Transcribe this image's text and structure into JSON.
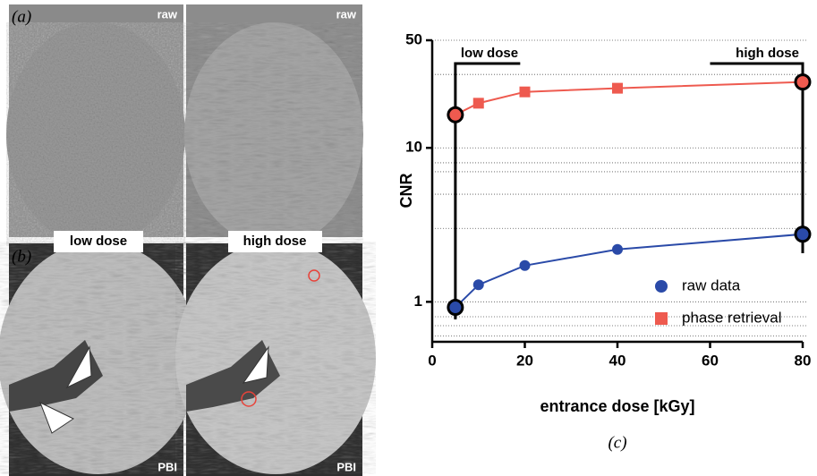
{
  "panels": {
    "labels": [
      "(a)",
      "(b)"
    ],
    "image_labels": [
      "raw",
      "raw",
      "PBI",
      "PBI"
    ],
    "headers": [
      "low dose",
      "high dose"
    ]
  },
  "chart_data": {
    "type": "line",
    "panel_label": "(c)",
    "x_label": "entrance dose [kGy]",
    "y_label": "CNR",
    "x": [
      5,
      10,
      20,
      40,
      80
    ],
    "series": [
      {
        "name": "raw data",
        "color": "#2a4aa8",
        "marker": "circle",
        "values": [
          0.92,
          1.29,
          1.72,
          2.19,
          2.75
        ]
      },
      {
        "name": "phase retrieval",
        "color": "#ee5a4f",
        "marker": "square",
        "values": [
          16.4,
          19.5,
          23.1,
          24.4,
          26.8
        ]
      }
    ],
    "annotations": [
      "low dose",
      "high dose"
    ],
    "xlim": [
      0,
      80
    ],
    "xticks": [
      0,
      20,
      40,
      60,
      80
    ],
    "ylim": [
      0.55,
      50
    ],
    "yticks": [
      1,
      10,
      50
    ],
    "log_y": true,
    "grid": true,
    "minor_yticks": [
      0.6,
      0.7,
      0.8,
      3,
      5,
      7,
      8,
      30
    ],
    "legend": "lower right"
  }
}
